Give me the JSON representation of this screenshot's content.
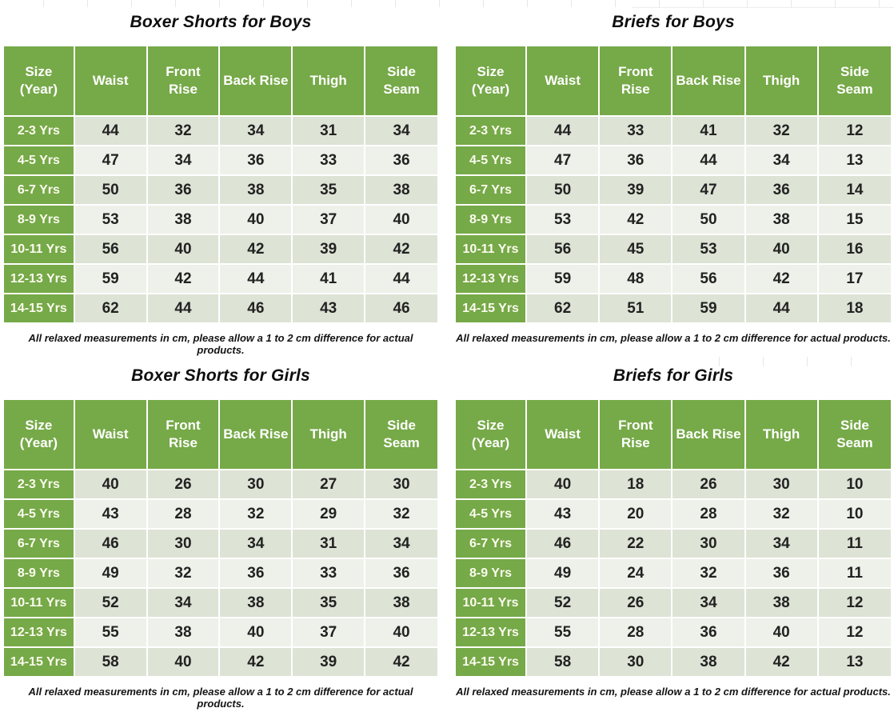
{
  "styles": {
    "accent_green": "#76a948",
    "band_dark": "#dde3d5",
    "band_light": "#eef1e9",
    "grid_line": "#ffffff",
    "title_color": "#0e0e0e"
  },
  "chart_data": [
    {
      "type": "table",
      "title": "Boxer Shorts for Boys",
      "columns": [
        "Size\n(Year)",
        "Waist",
        "Front\nRise",
        "Back Rise",
        "Thigh",
        "Side\nSeam"
      ],
      "rows": [
        {
          "label": "2-3 Yrs",
          "values": [
            44,
            32,
            34,
            31,
            34
          ]
        },
        {
          "label": "4-5 Yrs",
          "values": [
            47,
            34,
            36,
            33,
            36
          ]
        },
        {
          "label": "6-7 Yrs",
          "values": [
            50,
            36,
            38,
            35,
            38
          ]
        },
        {
          "label": "8-9 Yrs",
          "values": [
            53,
            38,
            40,
            37,
            40
          ]
        },
        {
          "label": "10-11 Yrs",
          "values": [
            56,
            40,
            42,
            39,
            42
          ]
        },
        {
          "label": "12-13 Yrs",
          "values": [
            59,
            42,
            44,
            41,
            44
          ]
        },
        {
          "label": "14-15 Yrs",
          "values": [
            62,
            44,
            46,
            43,
            46
          ]
        }
      ],
      "footnote": "All relaxed measurements in cm, please allow a 1 to 2 cm difference for actual products."
    },
    {
      "type": "table",
      "title": "Briefs for Boys",
      "columns": [
        "Size\n(Year)",
        "Waist",
        "Front\nRise",
        "Back Rise",
        "Thigh",
        "Side\nSeam"
      ],
      "rows": [
        {
          "label": "2-3 Yrs",
          "values": [
            44,
            33,
            41,
            32,
            12
          ]
        },
        {
          "label": "4-5 Yrs",
          "values": [
            47,
            36,
            44,
            34,
            13
          ]
        },
        {
          "label": "6-7 Yrs",
          "values": [
            50,
            39,
            47,
            36,
            14
          ]
        },
        {
          "label": "8-9 Yrs",
          "values": [
            53,
            42,
            50,
            38,
            15
          ]
        },
        {
          "label": "10-11 Yrs",
          "values": [
            56,
            45,
            53,
            40,
            16
          ]
        },
        {
          "label": "12-13 Yrs",
          "values": [
            59,
            48,
            56,
            42,
            17
          ]
        },
        {
          "label": "14-15 Yrs",
          "values": [
            62,
            51,
            59,
            44,
            18
          ]
        }
      ],
      "footnote": "All relaxed measurements in cm, please allow a 1 to 2 cm difference for actual products."
    },
    {
      "type": "table",
      "title": "Boxer Shorts for Girls",
      "columns": [
        "Size\n(Year)",
        "Waist",
        "Front\nRise",
        "Back Rise",
        "Thigh",
        "Side\nSeam"
      ],
      "rows": [
        {
          "label": "2-3 Yrs",
          "values": [
            40,
            26,
            30,
            27,
            30
          ]
        },
        {
          "label": "4-5 Yrs",
          "values": [
            43,
            28,
            32,
            29,
            32
          ]
        },
        {
          "label": "6-7 Yrs",
          "values": [
            46,
            30,
            34,
            31,
            34
          ]
        },
        {
          "label": "8-9 Yrs",
          "values": [
            49,
            32,
            36,
            33,
            36
          ]
        },
        {
          "label": "10-11 Yrs",
          "values": [
            52,
            34,
            38,
            35,
            38
          ]
        },
        {
          "label": "12-13 Yrs",
          "values": [
            55,
            38,
            40,
            37,
            40
          ]
        },
        {
          "label": "14-15 Yrs",
          "values": [
            58,
            40,
            42,
            39,
            42
          ]
        }
      ],
      "footnote": "All relaxed measurements in cm, please allow a 1 to 2 cm difference for actual products."
    },
    {
      "type": "table",
      "title": "Briefs for Girls",
      "columns": [
        "Size\n(Year)",
        "Waist",
        "Front\nRise",
        "Back Rise",
        "Thigh",
        "Side\nSeam"
      ],
      "rows": [
        {
          "label": "2-3 Yrs",
          "values": [
            40,
            18,
            26,
            30,
            10
          ]
        },
        {
          "label": "4-5 Yrs",
          "values": [
            43,
            20,
            28,
            32,
            10
          ]
        },
        {
          "label": "6-7 Yrs",
          "values": [
            46,
            22,
            30,
            34,
            11
          ]
        },
        {
          "label": "8-9 Yrs",
          "values": [
            49,
            24,
            32,
            36,
            11
          ]
        },
        {
          "label": "10-11 Yrs",
          "values": [
            52,
            26,
            34,
            38,
            12
          ]
        },
        {
          "label": "12-13 Yrs",
          "values": [
            55,
            28,
            36,
            40,
            12
          ]
        },
        {
          "label": "14-15 Yrs",
          "values": [
            58,
            30,
            38,
            42,
            13
          ]
        }
      ],
      "footnote": "All relaxed measurements in cm, please allow a 1 to 2 cm difference for actual products."
    }
  ]
}
